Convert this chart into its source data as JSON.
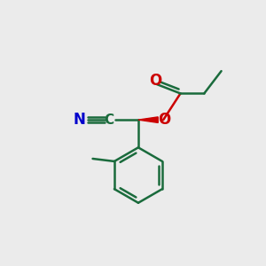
{
  "bg_color": "#ebebeb",
  "bond_color": "#1a6b3c",
  "o_color": "#cc0000",
  "n_color": "#0000cc",
  "lw": 1.8,
  "figsize": [
    3.0,
    3.0
  ],
  "dpi": 100,
  "xlim": [
    0,
    10
  ],
  "ylim": [
    0,
    10
  ]
}
